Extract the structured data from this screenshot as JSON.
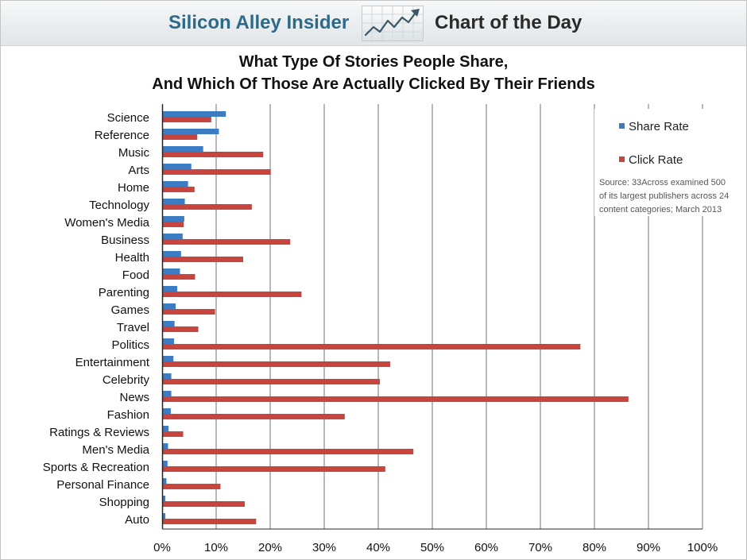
{
  "header": {
    "brand": "Silicon Alley Insider",
    "feature": "Chart of the Day",
    "logo_icon": "rising-chart-icon"
  },
  "chart_data": {
    "type": "bar",
    "orientation": "horizontal",
    "title": [
      "What Type Of Stories People Share,",
      "And Which Of Those Are Actually Clicked By Their Friends"
    ],
    "xlabel": "",
    "ylabel": "",
    "categories": [
      "Science",
      "Reference",
      "Music",
      "Arts",
      "Home",
      "Technology",
      "Women's Media",
      "Business",
      "Health",
      "Food",
      "Parenting",
      "Games",
      "Travel",
      "Politics",
      "Entertainment",
      "Celebrity",
      "News",
      "Fashion",
      "Ratings & Reviews",
      "Men's Media",
      "Sports & Recreation",
      "Personal Finance",
      "Shopping",
      "Auto"
    ],
    "series": [
      {
        "name": "Share Rate",
        "color": "#3b7cc2",
        "values": [
          11.8,
          10.5,
          7.6,
          5.4,
          4.8,
          4.2,
          4.1,
          3.8,
          3.5,
          3.3,
          2.8,
          2.5,
          2.3,
          2.2,
          2.1,
          1.7,
          1.7,
          1.6,
          1.2,
          1.1,
          1.0,
          0.8,
          0.6,
          0.6
        ]
      },
      {
        "name": "Click Rate",
        "color": "#c6463f",
        "values": [
          9.1,
          6.5,
          18.7,
          20.1,
          6.0,
          16.6,
          4.0,
          23.7,
          15.0,
          6.1,
          25.8,
          9.8,
          6.7,
          77.4,
          42.2,
          40.3,
          86.3,
          33.8,
          3.9,
          46.5,
          41.3,
          10.8,
          15.3,
          17.4
        ]
      }
    ],
    "xlim": [
      0,
      100
    ],
    "xticks": [
      0,
      10,
      20,
      30,
      40,
      50,
      60,
      70,
      80,
      90,
      100
    ],
    "xtick_labels": [
      "0%",
      "10%",
      "20%",
      "30%",
      "40%",
      "50%",
      "60%",
      "70%",
      "80%",
      "90%",
      "100%"
    ],
    "grid": "vertical",
    "legend": "top-right",
    "annotation": [
      "Source: 33Across examined 500",
      "of its largest publishers across 24",
      "content categories; March 2013"
    ]
  }
}
